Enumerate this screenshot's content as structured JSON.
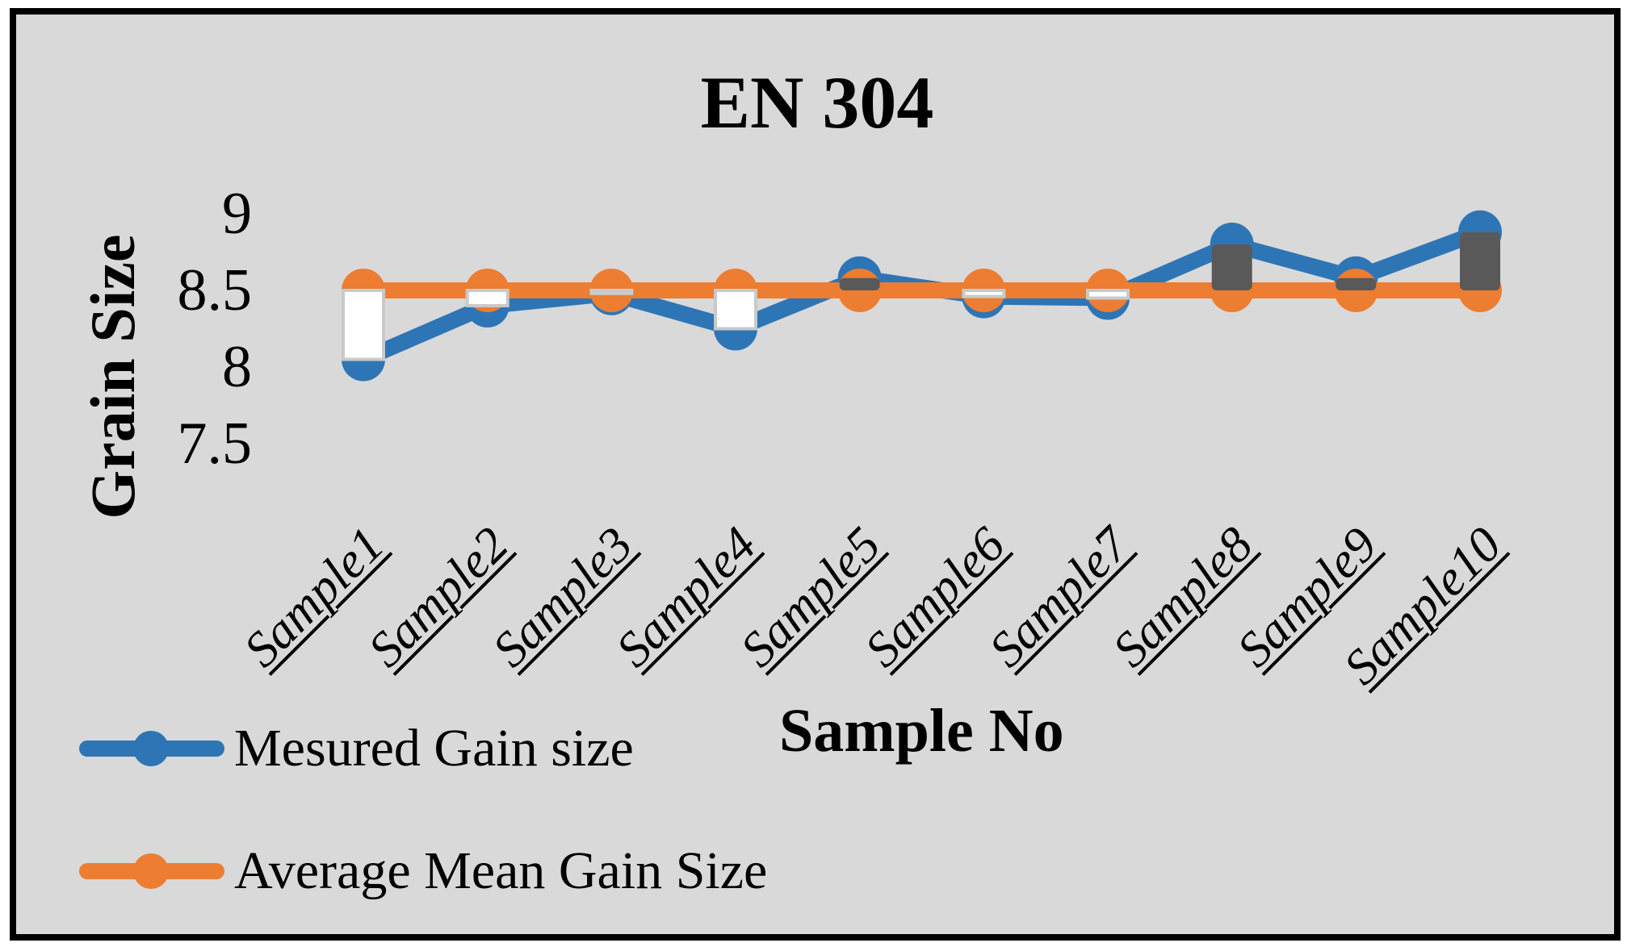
{
  "frame": {
    "background": "#D9D9D9",
    "border_color": "#000000"
  },
  "chart_data": {
    "type": "line",
    "title": "EN 304",
    "xlabel": "Sample No",
    "ylabel": "Grain Size",
    "categories": [
      "Sample1",
      "Sample2",
      "Sample3",
      "Sample4",
      "Sample5",
      "Sample6",
      "Sample7",
      "Sample8",
      "Sample9",
      "Sample10"
    ],
    "series": [
      {
        "name": "Mesured Gain size",
        "color": "#2E75B6",
        "marker": "circle",
        "values": [
          8.05,
          8.4,
          8.48,
          8.25,
          8.58,
          8.46,
          8.45,
          8.8,
          8.58,
          8.88
        ]
      },
      {
        "name": "Average Mean Gain Size",
        "color": "#ED7D31",
        "marker": "circle",
        "values": [
          8.5,
          8.5,
          8.5,
          8.5,
          8.5,
          8.5,
          8.5,
          8.5,
          8.5,
          8.5
        ]
      }
    ],
    "y_axis": {
      "tick_labels": [
        "9",
        "8.5",
        "8",
        "7.5"
      ],
      "tick_values": [
        9,
        8.5,
        8,
        7.5
      ],
      "min": 7.5,
      "max": 9.25
    },
    "up_down_bars": {
      "up_fill": "#595959",
      "down_fill": "#FFFFFF",
      "down_border": "#C9C9C9"
    },
    "grid": false,
    "legend_position": "bottom-left"
  }
}
